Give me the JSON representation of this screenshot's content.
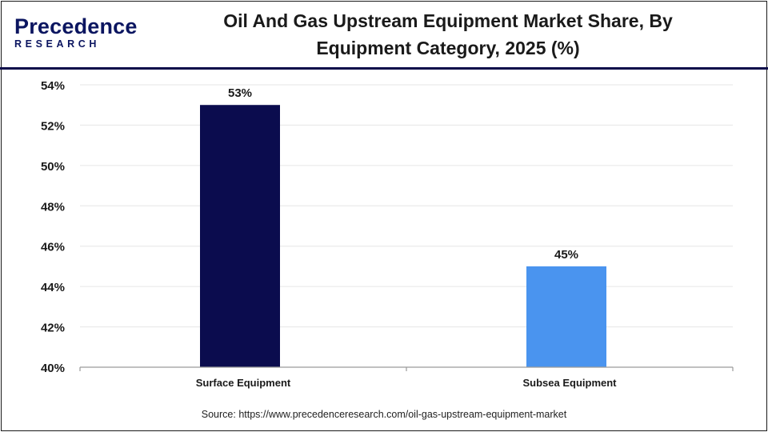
{
  "header": {
    "logo_word": "Precedence",
    "logo_sub": "RESEARCH",
    "title_line1": "Oil And Gas Upstream Equipment Market Share, By",
    "title_line2": "Equipment Category, 2025 (%)"
  },
  "colors": {
    "brand": "#0b1560",
    "surface_bar": "#0b0c4e",
    "subsea_bar": "#4a94ef",
    "gridline": "#e6e6e6"
  },
  "chart_data": {
    "type": "bar",
    "categories": [
      "Surface Equipment",
      "Subsea Equipment"
    ],
    "values": [
      53,
      45
    ],
    "value_labels": [
      "53%",
      "45%"
    ],
    "ylim": [
      40,
      54
    ],
    "y_ticks": [
      40,
      42,
      44,
      46,
      48,
      50,
      52,
      54
    ],
    "y_tick_labels": [
      "40%",
      "42%",
      "44%",
      "46%",
      "48%",
      "50%",
      "52%",
      "54%"
    ],
    "grid": true,
    "legend": "none"
  },
  "footer": {
    "source": "Source: https://www.precedenceresearch.com/oil-gas-upstream-equipment-market"
  }
}
